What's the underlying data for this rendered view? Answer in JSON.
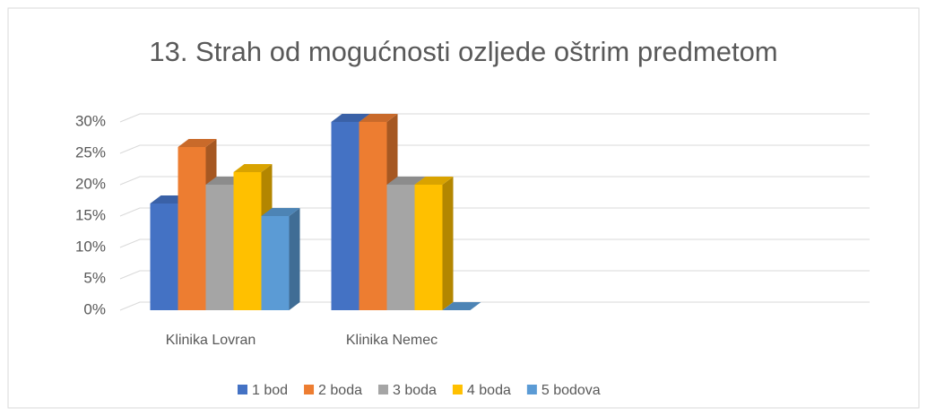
{
  "chart_data": {
    "type": "bar3d",
    "title": "13. Strah od mogućnosti ozljede oštrim predmetom",
    "categories": [
      "Klinika Lovran",
      "Klinika Nemec",
      null,
      null
    ],
    "series": [
      {
        "name": "1 bod",
        "color": "#4472c4",
        "values": [
          17,
          30,
          null,
          null
        ]
      },
      {
        "name": "2 boda",
        "color": "#ed7d31",
        "values": [
          26,
          30,
          null,
          null
        ]
      },
      {
        "name": "3 boda",
        "color": "#a5a5a5",
        "values": [
          20,
          20,
          null,
          null
        ]
      },
      {
        "name": "4 boda",
        "color": "#ffc000",
        "values": [
          22,
          20,
          null,
          null
        ]
      },
      {
        "name": "5 bodova",
        "color": "#5b9bd5",
        "values": [
          15,
          0,
          null,
          null
        ]
      }
    ],
    "ylim": [
      0,
      30
    ],
    "yticks": [
      {
        "value": 0,
        "label": "0%"
      },
      {
        "value": 5,
        "label": "5%"
      },
      {
        "value": 10,
        "label": "10%"
      },
      {
        "value": 15,
        "label": "15%"
      },
      {
        "value": 20,
        "label": "20%"
      },
      {
        "value": 25,
        "label": "25%"
      },
      {
        "value": 30,
        "label": "30%"
      }
    ],
    "grid": true,
    "legend": "bottom"
  }
}
